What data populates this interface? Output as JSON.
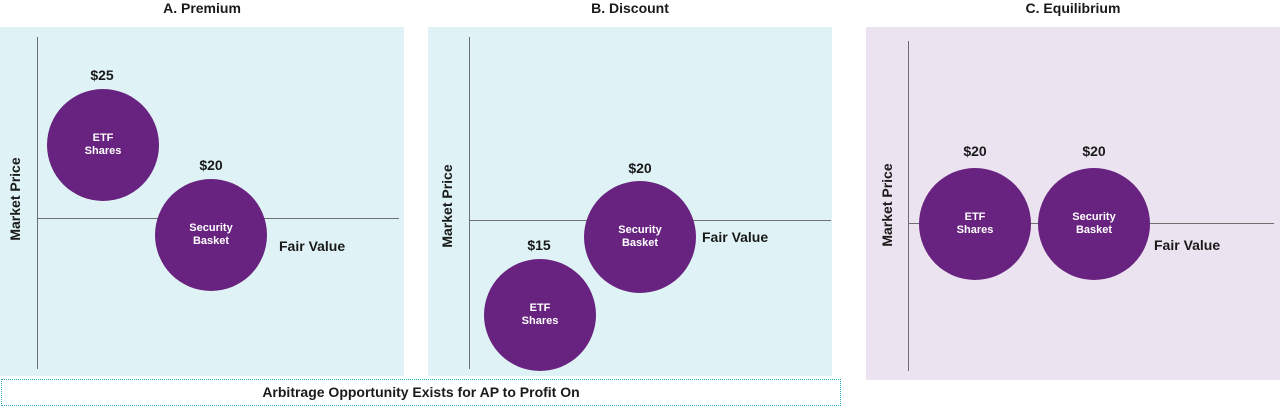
{
  "panels": [
    {
      "title": "A. Premium",
      "y_axis_label": "Market Price",
      "reference_line_label": "Fair Value",
      "background": "#dff3f6",
      "circles": [
        {
          "line1": "ETF",
          "line2": "Shares",
          "price": "$25"
        },
        {
          "line1": "Security",
          "line2": "Basket",
          "price": "$20"
        }
      ]
    },
    {
      "title": "B. Discount",
      "y_axis_label": "Market Price",
      "reference_line_label": "Fair Value",
      "background": "#dff3f6",
      "circles": [
        {
          "line1": "Security",
          "line2": "Basket",
          "price": "$20"
        },
        {
          "line1": "ETF",
          "line2": "Shares",
          "price": "$15"
        }
      ]
    },
    {
      "title": "C. Equilibrium",
      "y_axis_label": "Market Price",
      "reference_line_label": "Fair Value",
      "background": "#ece3f1",
      "circles": [
        {
          "line1": "ETF",
          "line2": "Shares",
          "price": "$20"
        },
        {
          "line1": "Security",
          "line2": "Basket",
          "price": "$20"
        }
      ]
    }
  ],
  "banner": {
    "text": "Arbitrage Opportunity Exists for AP to Profit On"
  },
  "colors": {
    "circle_fill": "#68227f",
    "axis": "#6f6f6f",
    "banner_border": "#2aa6bc"
  }
}
